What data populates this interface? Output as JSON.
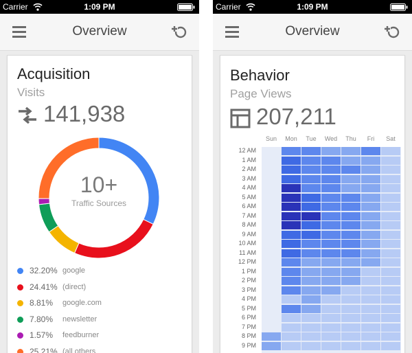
{
  "status_bar": {
    "carrier": "Carrier",
    "time": "1:09 PM"
  },
  "acquisition_screen": {
    "nav_title": "Overview",
    "card": {
      "title": "Acquisition",
      "subtitle": "Visits",
      "metric_value": "141,938",
      "center_value": "10+",
      "center_label": "Traffic Sources"
    },
    "legend": [
      {
        "pct": "32.20%",
        "label": "google",
        "color": "#4285f4",
        "value": 32.2
      },
      {
        "pct": "24.41%",
        "label": "(direct)",
        "color": "#e8101c",
        "value": 24.41
      },
      {
        "pct": "8.81%",
        "label": "google.com",
        "color": "#f4b400",
        "value": 8.81
      },
      {
        "pct": "7.80%",
        "label": "newsletter",
        "color": "#0f9d58",
        "value": 7.8
      },
      {
        "pct": "1.57%",
        "label": "feedburner",
        "color": "#ab1cb3",
        "value": 1.57
      },
      {
        "pct": "25.21%",
        "label": "(all others combined)",
        "color": "#ff6d29",
        "value": 25.21
      }
    ]
  },
  "behavior_screen": {
    "nav_title": "Overview",
    "card": {
      "title": "Behavior",
      "subtitle": "Page Views",
      "metric_value": "207,211"
    },
    "days": [
      "Sun",
      "Mon",
      "Tue",
      "Wed",
      "Thu",
      "Fri",
      "Sat"
    ],
    "hours": [
      "12 AM",
      "1 AM",
      "2 AM",
      "3 AM",
      "4 AM",
      "5 AM",
      "6 AM",
      "7 AM",
      "8 AM",
      "9 AM",
      "10 AM",
      "11 AM",
      "12 PM",
      "1 PM",
      "2 PM",
      "3 PM",
      "4 PM",
      "5 PM",
      "6 PM",
      "7 PM",
      "8 PM",
      "9 PM"
    ],
    "intensity_colors": [
      "#e6ecf8",
      "#b7cbf5",
      "#86a8f0",
      "#5d87ed",
      "#3f6ae4",
      "#2a33b8"
    ],
    "intensity_grid": [
      [
        0,
        3,
        3,
        2,
        2,
        3,
        1
      ],
      [
        0,
        4,
        3,
        3,
        2,
        2,
        1
      ],
      [
        0,
        4,
        3,
        3,
        3,
        2,
        1
      ],
      [
        0,
        4,
        3,
        3,
        2,
        2,
        1
      ],
      [
        0,
        5,
        3,
        3,
        2,
        2,
        1
      ],
      [
        0,
        5,
        4,
        3,
        3,
        2,
        1
      ],
      [
        0,
        5,
        4,
        3,
        3,
        2,
        1
      ],
      [
        0,
        5,
        5,
        3,
        3,
        2,
        1
      ],
      [
        0,
        5,
        4,
        3,
        3,
        2,
        1
      ],
      [
        0,
        4,
        4,
        3,
        3,
        2,
        1
      ],
      [
        0,
        4,
        3,
        3,
        3,
        2,
        1
      ],
      [
        0,
        4,
        3,
        3,
        3,
        2,
        1
      ],
      [
        0,
        3,
        2,
        2,
        2,
        2,
        1
      ],
      [
        0,
        3,
        2,
        2,
        2,
        1,
        1
      ],
      [
        0,
        3,
        2,
        2,
        2,
        1,
        1
      ],
      [
        0,
        3,
        2,
        2,
        1,
        1,
        1
      ],
      [
        0,
        1,
        2,
        1,
        1,
        1,
        1
      ],
      [
        0,
        3,
        2,
        1,
        1,
        1,
        1
      ],
      [
        0,
        1,
        1,
        1,
        1,
        1,
        1
      ],
      [
        0,
        1,
        1,
        1,
        1,
        1,
        1
      ],
      [
        2,
        1,
        1,
        1,
        1,
        1,
        1
      ],
      [
        2,
        1,
        1,
        1,
        1,
        1,
        1
      ]
    ]
  },
  "icons": {
    "menu": "menu-icon",
    "segment_add": "segment-add-icon",
    "traffic": "swap-arrows-icon",
    "page_views": "page-layout-icon",
    "wifi": "wifi-icon",
    "battery": "battery-icon"
  }
}
